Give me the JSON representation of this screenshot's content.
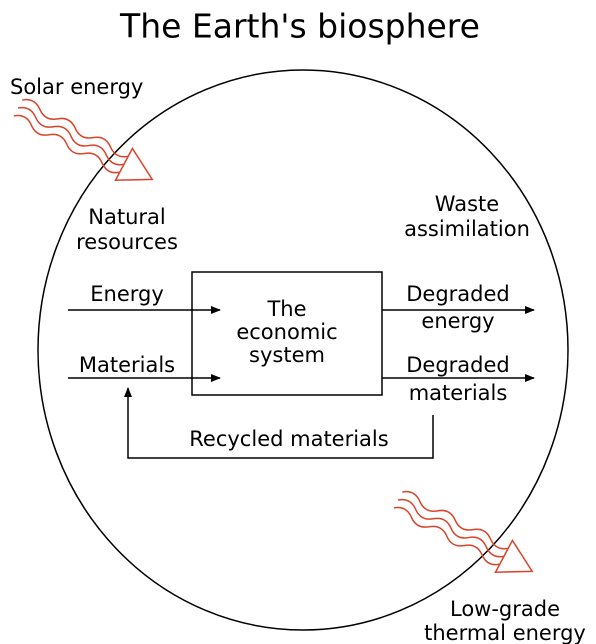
{
  "title": "The Earth's biosphere",
  "inputs": {
    "solar": "Solar energy",
    "natural_resources": [
      "Natural",
      "resources"
    ],
    "energy": "Energy",
    "materials": "Materials"
  },
  "system": [
    "The",
    "economic",
    "system"
  ],
  "outputs": {
    "waste_assimilation": [
      "Waste",
      "assimilation"
    ],
    "degraded_energy": [
      "Degraded",
      "energy"
    ],
    "degraded_materials": [
      "Degraded",
      "materials"
    ],
    "low_grade": [
      "Low-grade",
      "thermal energy"
    ]
  },
  "recycled": "Recycled materials"
}
